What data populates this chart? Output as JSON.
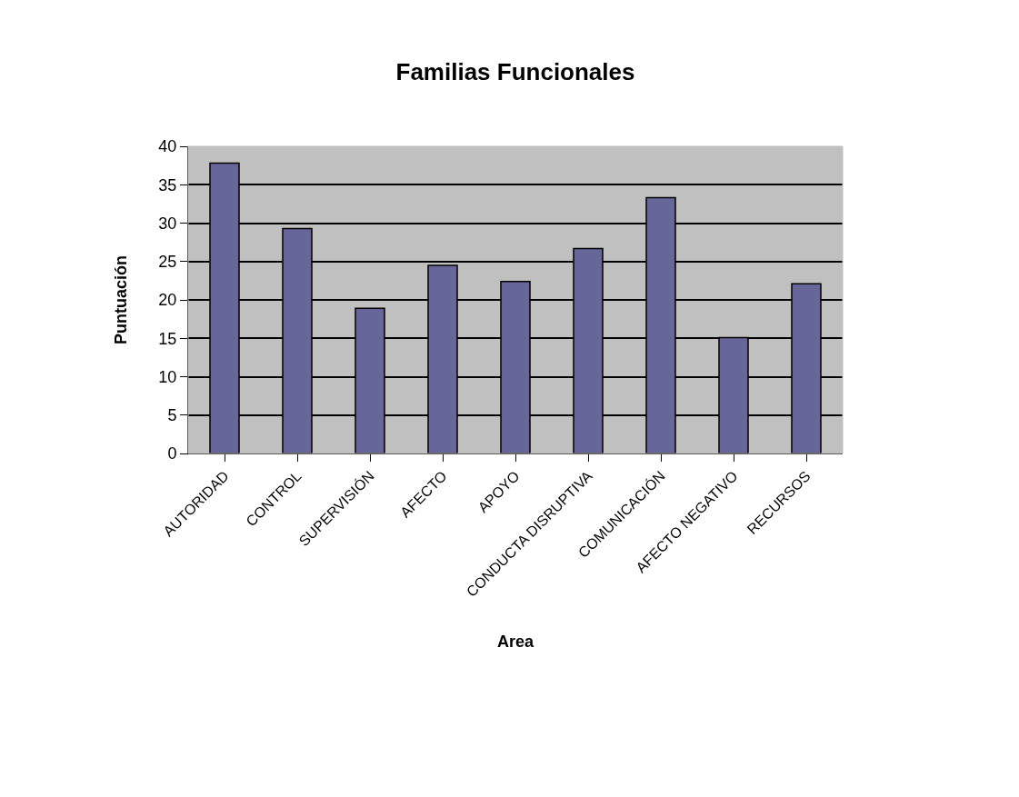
{
  "chart_data": {
    "type": "bar",
    "title": "Familias Funcionales",
    "xlabel": "Area",
    "ylabel": "Puntuación",
    "categories": [
      "AUTORIDAD",
      "CONTROL",
      "SUPERVISIÓN",
      "AFECTO",
      "APOYO",
      "CONDUCTA DISRUPTIVA",
      "COMUNICACIÓN",
      "AFECTO NEGATIVO",
      "RECURSOS"
    ],
    "values": [
      37.8,
      29.3,
      18.9,
      24.5,
      22.4,
      26.7,
      33.3,
      15.1,
      22.1
    ],
    "color": "#666699",
    "ylim": [
      0,
      40
    ],
    "yticks": [
      0,
      5,
      10,
      15,
      20,
      25,
      30,
      35,
      40
    ],
    "grid": "y"
  }
}
